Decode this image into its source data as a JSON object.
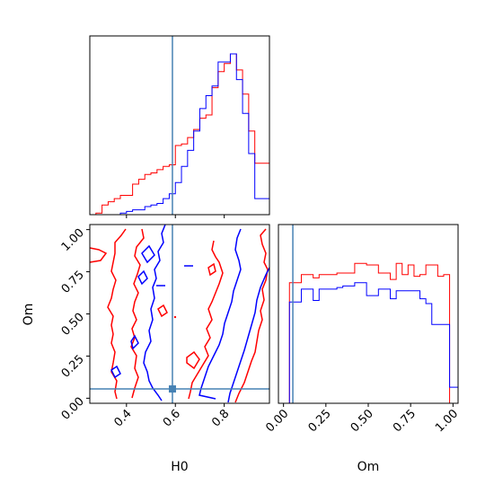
{
  "chart_data": {
    "type": "corner",
    "parameters": [
      "H0",
      "Om"
    ],
    "truth": {
      "H0": 0.588,
      "Om": 0.055
    },
    "colors": {
      "series_a": "#ff0000",
      "series_b": "#0000ff",
      "truth": "#4682b4"
    },
    "axes": {
      "H0": {
        "range": [
          0.25,
          0.985
        ],
        "ticks": [
          0.4,
          0.6,
          0.8
        ],
        "tick_labels": [
          "0.4",
          "0.6",
          "0.8"
        ]
      },
      "Om": {
        "range": [
          -0.03,
          1.03
        ],
        "ticks": [
          0.0,
          0.25,
          0.5,
          0.75,
          1.0
        ],
        "tick_labels": [
          "0.00",
          "0.25",
          "0.50",
          "0.75",
          "1.00"
        ]
      }
    },
    "labels": {
      "xlabel_left": "H0",
      "xlabel_right": "Om",
      "ylabel_left": "Om"
    },
    "hist_H0": {
      "edges": [
        0.25,
        0.275,
        0.3,
        0.325,
        0.35,
        0.375,
        0.4,
        0.425,
        0.45,
        0.475,
        0.5,
        0.525,
        0.55,
        0.575,
        0.6,
        0.625,
        0.65,
        0.675,
        0.7,
        0.725,
        0.75,
        0.775,
        0.8,
        0.825,
        0.85,
        0.875,
        0.9,
        0.925,
        0.95,
        0.975,
        0.985
      ],
      "red": [
        0.0,
        0.01,
        0.06,
        0.08,
        0.1,
        0.12,
        0.12,
        0.19,
        0.22,
        0.25,
        0.26,
        0.28,
        0.3,
        0.31,
        0.43,
        0.44,
        0.48,
        0.53,
        0.6,
        0.62,
        0.79,
        0.89,
        0.94,
        1.0,
        0.9,
        0.75,
        0.52,
        0.32,
        0.32,
        0.32
      ],
      "blue": [
        0.0,
        0.0,
        0.0,
        0.0,
        0.0,
        0.01,
        0.02,
        0.03,
        0.03,
        0.05,
        0.06,
        0.07,
        0.1,
        0.13,
        0.2,
        0.3,
        0.4,
        0.52,
        0.66,
        0.74,
        0.8,
        0.95,
        0.95,
        1.0,
        0.84,
        0.63,
        0.38,
        0.1,
        0.1,
        0.1
      ]
    },
    "hist_Om": {
      "edges": [
        -0.03,
        0.0,
        0.035,
        0.07,
        0.105,
        0.14,
        0.175,
        0.21,
        0.245,
        0.28,
        0.315,
        0.35,
        0.385,
        0.42,
        0.455,
        0.49,
        0.525,
        0.56,
        0.595,
        0.63,
        0.665,
        0.7,
        0.735,
        0.77,
        0.805,
        0.84,
        0.875,
        0.91,
        0.945,
        0.98,
        1.03
      ],
      "red": [
        0.0,
        0.0,
        0.75,
        0.75,
        0.8,
        0.8,
        0.78,
        0.8,
        0.8,
        0.8,
        0.81,
        0.81,
        0.81,
        0.87,
        0.87,
        0.86,
        0.86,
        0.81,
        0.81,
        0.77,
        0.87,
        0.8,
        0.86,
        0.79,
        0.8,
        0.86,
        0.86,
        0.79,
        0.8,
        0.0
      ],
      "blue": [
        0.0,
        0.0,
        0.63,
        0.63,
        0.71,
        0.71,
        0.64,
        0.71,
        0.71,
        0.71,
        0.72,
        0.73,
        0.73,
        0.75,
        0.75,
        0.67,
        0.67,
        0.71,
        0.71,
        0.65,
        0.7,
        0.7,
        0.7,
        0.7,
        0.65,
        0.62,
        0.49,
        0.49,
        0.49,
        0.1
      ]
    }
  }
}
